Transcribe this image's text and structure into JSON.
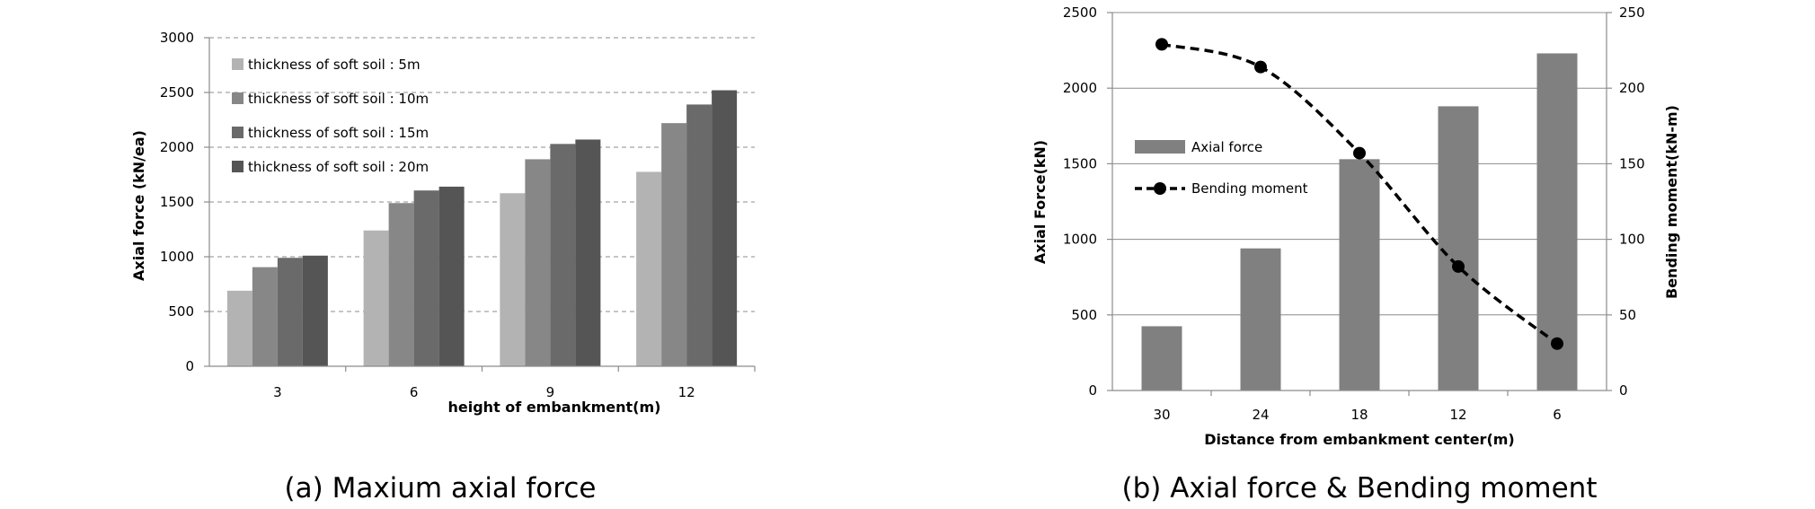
{
  "colors": {
    "s1": "#b3b3b3",
    "s2": "#878787",
    "s3": "#6a6a6a",
    "s4": "#555555",
    "bar_b": "#808080",
    "line_b": "#000000",
    "grid": "#8c8c8c"
  },
  "chart_data": [
    {
      "type": "bar",
      "caption": "(a) Maxium axial force",
      "xlabel": "height of embankment(m)",
      "ylabel": "Axial force (kN/ea)",
      "categories": [
        "3",
        "6",
        "9",
        "12"
      ],
      "ylim": [
        0,
        3000
      ],
      "yticks": [
        "0",
        "500",
        "1000",
        "1500",
        "2000",
        "2500",
        "3000"
      ],
      "grid": true,
      "legend_position": "top-left",
      "series": [
        {
          "name": "thickness of soft soil : 5m",
          "values": [
            690,
            1240,
            1580,
            1775
          ]
        },
        {
          "name": "thickness of soft soil : 10m",
          "values": [
            905,
            1490,
            1890,
            2220
          ]
        },
        {
          "name": "thickness of soft soil : 15m",
          "values": [
            990,
            1605,
            2030,
            2390
          ]
        },
        {
          "name": "thickness of soft soil : 20m",
          "values": [
            1010,
            1640,
            2070,
            2520
          ]
        }
      ]
    },
    {
      "type": "bar+line",
      "caption": "(b) Axial force & Bending moment",
      "xlabel": "Distance from embankment center(m)",
      "ylabel": "Axial Force(kN)",
      "y2label": "Bending moment(kN-m)",
      "categories": [
        "30",
        "24",
        "18",
        "12",
        "6"
      ],
      "ylim": [
        0,
        2500
      ],
      "y2lim": [
        0,
        250
      ],
      "yticks": [
        "0",
        "500",
        "1000",
        "1500",
        "2000",
        "2500"
      ],
      "y2ticks": [
        "0",
        "50",
        "100",
        "150",
        "200",
        "250"
      ],
      "grid": true,
      "legend_position": "left",
      "series": [
        {
          "name": "Axial force",
          "type": "bar",
          "axis": "left",
          "values": [
            425,
            940,
            1530,
            1880,
            2230
          ]
        },
        {
          "name": "Bending moment",
          "type": "line",
          "axis": "right",
          "values": [
            229,
            214,
            157,
            82,
            31
          ]
        }
      ]
    }
  ]
}
